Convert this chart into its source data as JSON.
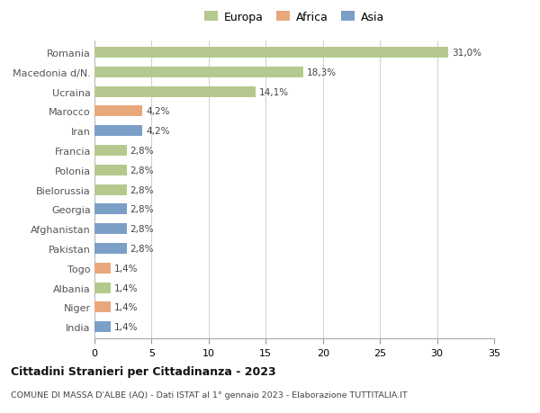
{
  "categories": [
    "Romania",
    "Macedonia d/N.",
    "Ucraina",
    "Marocco",
    "Iran",
    "Francia",
    "Polonia",
    "Bielorussia",
    "Georgia",
    "Afghanistan",
    "Pakistan",
    "Togo",
    "Albania",
    "Niger",
    "India"
  ],
  "values": [
    31.0,
    18.3,
    14.1,
    4.2,
    4.2,
    2.8,
    2.8,
    2.8,
    2.8,
    2.8,
    2.8,
    1.4,
    1.4,
    1.4,
    1.4
  ],
  "labels": [
    "31,0%",
    "18,3%",
    "14,1%",
    "4,2%",
    "4,2%",
    "2,8%",
    "2,8%",
    "2,8%",
    "2,8%",
    "2,8%",
    "2,8%",
    "1,4%",
    "1,4%",
    "1,4%",
    "1,4%"
  ],
  "continents": [
    "Europa",
    "Europa",
    "Europa",
    "Africa",
    "Asia",
    "Europa",
    "Europa",
    "Europa",
    "Asia",
    "Asia",
    "Asia",
    "Africa",
    "Europa",
    "Africa",
    "Asia"
  ],
  "colors": {
    "Europa": "#b5c98e",
    "Africa": "#e8a87c",
    "Asia": "#7b9fc7"
  },
  "legend_labels": [
    "Europa",
    "Africa",
    "Asia"
  ],
  "title": "Cittadini Stranieri per Cittadinanza - 2023",
  "subtitle": "COMUNE DI MASSA D'ALBE (AQ) - Dati ISTAT al 1° gennaio 2023 - Elaborazione TUTTITALIA.IT",
  "xlim": [
    0,
    35
  ],
  "xticks": [
    0,
    5,
    10,
    15,
    20,
    25,
    30,
    35
  ],
  "background_color": "#ffffff",
  "grid_color": "#d0d0d0",
  "bar_height": 0.55
}
